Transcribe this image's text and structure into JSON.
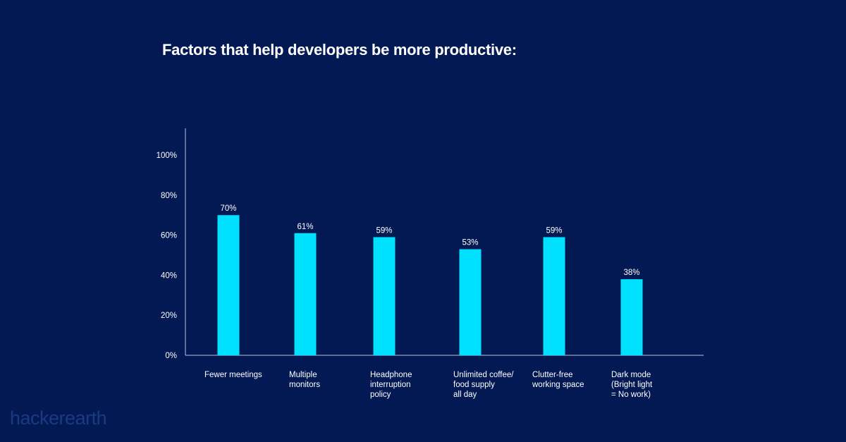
{
  "chart_data": {
    "type": "bar",
    "title": "Factors that help developers be more productive:",
    "categories": [
      "Fewer meetings",
      "Multiple\nmonitors",
      "Headphone\ninterruption\npolicy",
      "Unlimited coffee/\nfood supply\nall day",
      "Clutter-free\nworking space",
      "Dark mode\n(Bright light\n= No work)"
    ],
    "values": [
      70,
      61,
      59,
      53,
      59,
      38
    ],
    "value_labels": [
      "70%",
      "61%",
      "59%",
      "53%",
      "59%",
      "38%"
    ],
    "ylim": [
      0,
      100
    ],
    "yticks": [
      0,
      20,
      40,
      60,
      80,
      100
    ],
    "ytick_labels": [
      "0%",
      "20%",
      "40%",
      "60%",
      "80%",
      "100%"
    ],
    "xlabel": "",
    "ylabel": "",
    "grid": false,
    "bar_color": "#00e1ff",
    "axis_color": "#b9c3dc"
  },
  "logo": {
    "text": "hackerearth",
    "color": "#1b3a82"
  }
}
